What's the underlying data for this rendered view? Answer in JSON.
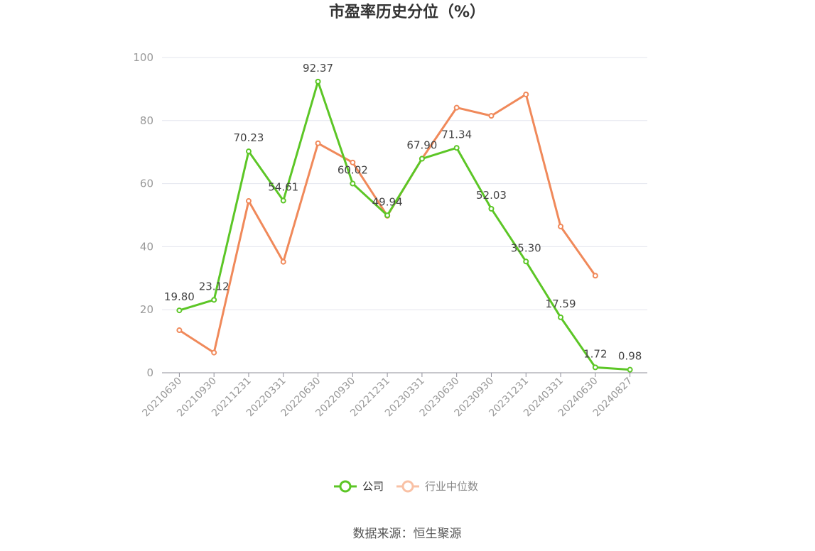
{
  "chart_data": {
    "type": "line",
    "title": "市盈率历史分位（%）",
    "categories": [
      "20210630",
      "20210930",
      "20211231",
      "20220331",
      "20220630",
      "20220930",
      "20221231",
      "20230331",
      "20230630",
      "20230930",
      "20231231",
      "20240331",
      "20240630",
      "20240827"
    ],
    "series": [
      {
        "name": "公司",
        "color": "#5cc626",
        "values": [
          19.8,
          23.12,
          70.23,
          54.61,
          92.37,
          60.02,
          49.94,
          67.9,
          71.34,
          52.03,
          35.3,
          17.59,
          1.72,
          0.98
        ],
        "labels": [
          "19.80",
          "23.12",
          "70.23",
          "54.61",
          "92.37",
          "60.02",
          "49.94",
          "67.90",
          "71.34",
          "52.03",
          "35.30",
          "17.59",
          "1.72",
          "0.98"
        ]
      },
      {
        "name": "行业中位数",
        "color": "#f0895a",
        "values": [
          13.5,
          6.4,
          54.5,
          35.2,
          72.8,
          66.7,
          49.8,
          67.9,
          84.1,
          81.5,
          88.3,
          46.4,
          30.8,
          null
        ]
      }
    ],
    "yticks": [
      "0",
      "20",
      "40",
      "60",
      "80",
      "100"
    ],
    "ylim": [
      0,
      100
    ],
    "grid": true,
    "legend_position": "bottom"
  },
  "source_text": "数据来源：恒生聚源"
}
